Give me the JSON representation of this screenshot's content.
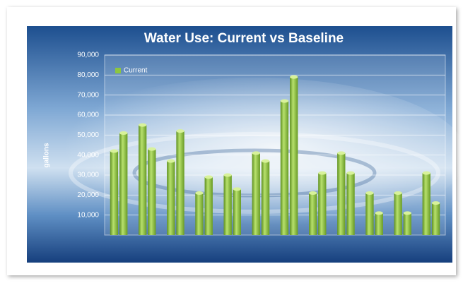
{
  "chart_data": {
    "type": "bar",
    "title": "Water Use:  Current vs Baseline",
    "y_label": "gallons",
    "categories": [
      null,
      null,
      null,
      null,
      null,
      null,
      null,
      null,
      null,
      null,
      null,
      null
    ],
    "series": [
      {
        "name": "Current",
        "color": "#8dc63f",
        "values": [
          42000,
          55000,
          37000,
          21000,
          30000,
          41000,
          67000,
          21000,
          41000,
          21000,
          21000,
          31000
        ]
      },
      {
        "color": "#8dc63f",
        "values": [
          51000,
          43000,
          52000,
          29000,
          23000,
          37000,
          79000,
          31000,
          31000,
          11000,
          11000,
          16000
        ]
      }
    ],
    "ylim": [
      0,
      90000
    ],
    "yticks": [
      {
        "value": 10000,
        "label": "10,000"
      },
      {
        "value": 20000,
        "label": "20,000"
      },
      {
        "value": 30000,
        "label": "30,000"
      },
      {
        "value": 40000,
        "label": "40,000"
      },
      {
        "value": 50000,
        "label": "50,000"
      },
      {
        "value": 60000,
        "label": "60,000"
      },
      {
        "value": 70000,
        "label": "70,000"
      },
      {
        "value": 80000,
        "label": "80,000"
      },
      {
        "value": 90000,
        "label": "90,000"
      }
    ],
    "grid": true,
    "legend": "top-left"
  }
}
